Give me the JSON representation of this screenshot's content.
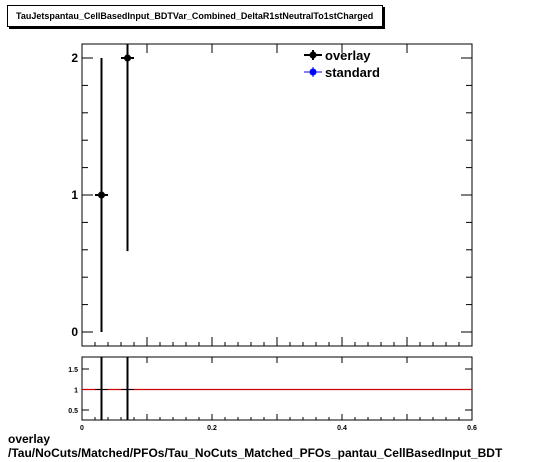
{
  "title": "TauJetspantau_CellBasedInput_BDTVar_Combined_DeltaR1stNeutralTo1stCharged",
  "caption": {
    "line1": "overlay",
    "line2": "/Tau/NoCuts/Matched/PFOs/Tau_NoCuts_Matched_PFOs_pantau_CellBasedInput_BDT"
  },
  "colors": {
    "overlay": "#000000",
    "standard": "#0000ff",
    "ratio_line": "#cc0000"
  },
  "chart_data": [
    {
      "type": "scatter",
      "title": "",
      "xlabel": "",
      "ylabel": "",
      "xlim": [
        0,
        0.6
      ],
      "ylim": [
        0,
        2.1
      ],
      "yticks": [
        0,
        1,
        2
      ],
      "ytick_labels": [
        "0",
        "1",
        "2"
      ],
      "legend": {
        "placement": "top-right",
        "entries": [
          "overlay",
          "standard"
        ]
      },
      "series": [
        {
          "name": "overlay",
          "points": [
            {
              "x": 0.03,
              "y": 1,
              "xerr": 0.01,
              "ylow": 0,
              "yhigh": 2
            },
            {
              "x": 0.07,
              "y": 2,
              "xerr": 0.01,
              "ylow": 0.59,
              "yhigh": 2.1
            }
          ]
        },
        {
          "name": "standard",
          "points": []
        }
      ]
    },
    {
      "type": "line",
      "title": "",
      "xlabel": "",
      "ylabel": "",
      "xlim": [
        0,
        0.6
      ],
      "ylim": [
        0.3,
        1.7
      ],
      "xticks": [
        0,
        0.2,
        0.4,
        0.6
      ],
      "xtick_labels": [
        "0",
        "0.2",
        "0.4",
        "0.6"
      ],
      "yticks": [
        0.5,
        1,
        1.5
      ],
      "ytick_labels": [
        "0.5",
        "1",
        "1.5"
      ],
      "reference_line": 1,
      "series": [
        {
          "name": "ratio",
          "points": [
            {
              "x": 0.03,
              "y": 1,
              "xerr": 0.01,
              "ylow": 0.3,
              "yhigh": 1.7
            },
            {
              "x": 0.07,
              "y": 1,
              "xerr": 0.01,
              "ylow": 0.3,
              "yhigh": 1.7
            }
          ]
        }
      ]
    }
  ]
}
